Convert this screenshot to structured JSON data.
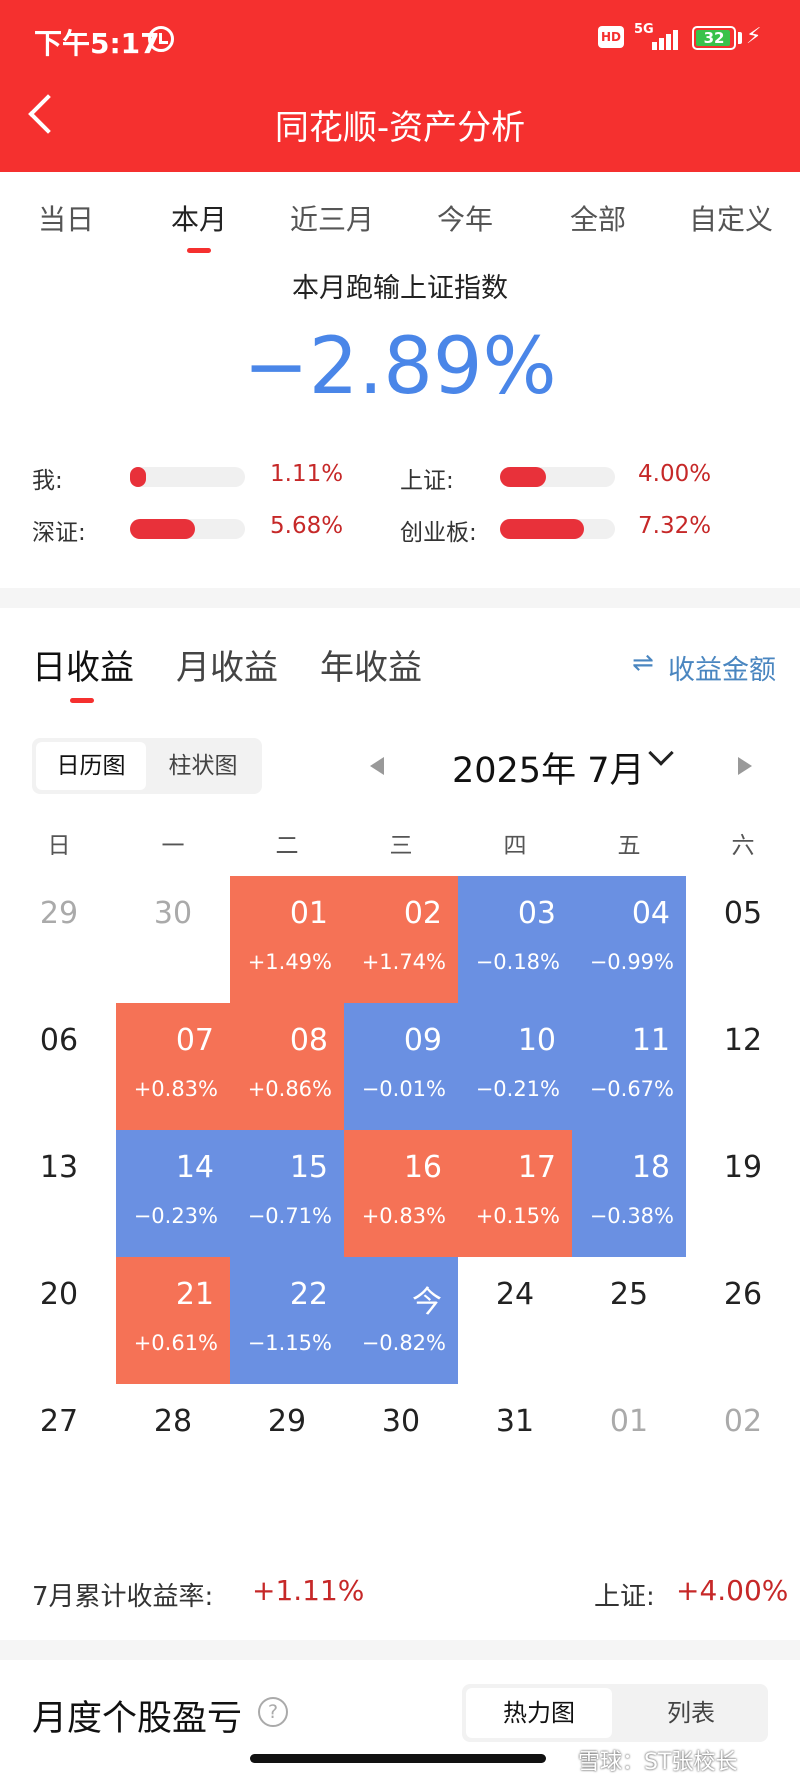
{
  "status_bar": {
    "time": "下午5:17",
    "hd": "HD",
    "network": "5G",
    "battery": "32"
  },
  "header": {
    "title": "同花顺-资产分析"
  },
  "range_tabs": [
    {
      "label": "当日",
      "active": false
    },
    {
      "label": "本月",
      "active": true
    },
    {
      "label": "近三月",
      "active": false
    },
    {
      "label": "今年",
      "active": false
    },
    {
      "label": "全部",
      "active": false
    },
    {
      "label": "自定义",
      "active": false
    }
  ],
  "summary": {
    "title": "本月跑输上证指数",
    "value": "−2.89%",
    "benchmarks": [
      {
        "label": "我:",
        "value": "1.11%",
        "fill": 0.1111
      },
      {
        "label": "上证:",
        "value": "4.00%",
        "fill": 0.4
      },
      {
        "label": "深证:",
        "value": "5.68%",
        "fill": 0.568
      },
      {
        "label": "创业板:",
        "value": "7.32%",
        "fill": 0.732
      }
    ]
  },
  "income_tabs": [
    {
      "label": "日收益",
      "active": true
    },
    {
      "label": "月收益",
      "active": false
    },
    {
      "label": "年收益",
      "active": false
    }
  ],
  "amount_toggle": "收益金额",
  "view_toggle": [
    {
      "label": "日历图",
      "active": true
    },
    {
      "label": "柱状图",
      "active": false
    }
  ],
  "month_label": "2025年 7月",
  "weekdays": [
    "日",
    "一",
    "二",
    "三",
    "四",
    "五",
    "六"
  ],
  "calendar": [
    [
      {
        "day": "29",
        "muted": true
      },
      {
        "day": "30",
        "muted": true
      },
      {
        "day": "01",
        "pct": "+1.49%",
        "state": "up"
      },
      {
        "day": "02",
        "pct": "+1.74%",
        "state": "up"
      },
      {
        "day": "03",
        "pct": "−0.18%",
        "state": "down"
      },
      {
        "day": "04",
        "pct": "−0.99%",
        "state": "down"
      },
      {
        "day": "05"
      }
    ],
    [
      {
        "day": "06"
      },
      {
        "day": "07",
        "pct": "+0.83%",
        "state": "up"
      },
      {
        "day": "08",
        "pct": "+0.86%",
        "state": "up"
      },
      {
        "day": "09",
        "pct": "−0.01%",
        "state": "down"
      },
      {
        "day": "10",
        "pct": "−0.21%",
        "state": "down"
      },
      {
        "day": "11",
        "pct": "−0.67%",
        "state": "down"
      },
      {
        "day": "12"
      }
    ],
    [
      {
        "day": "13"
      },
      {
        "day": "14",
        "pct": "−0.23%",
        "state": "down"
      },
      {
        "day": "15",
        "pct": "−0.71%",
        "state": "down"
      },
      {
        "day": "16",
        "pct": "+0.83%",
        "state": "up"
      },
      {
        "day": "17",
        "pct": "+0.15%",
        "state": "up"
      },
      {
        "day": "18",
        "pct": "−0.38%",
        "state": "down"
      },
      {
        "day": "19"
      }
    ],
    [
      {
        "day": "20"
      },
      {
        "day": "21",
        "pct": "+0.61%",
        "state": "up"
      },
      {
        "day": "22",
        "pct": "−1.15%",
        "state": "down"
      },
      {
        "day": "今",
        "pct": "−0.82%",
        "state": "down"
      },
      {
        "day": "24"
      },
      {
        "day": "25"
      },
      {
        "day": "26"
      }
    ],
    [
      {
        "day": "27"
      },
      {
        "day": "28"
      },
      {
        "day": "29"
      },
      {
        "day": "30"
      },
      {
        "day": "31"
      },
      {
        "day": "01",
        "muted": true
      },
      {
        "day": "02",
        "muted": true
      }
    ]
  ],
  "cumulative": {
    "label": "7月累计收益率:",
    "value": "+1.11%",
    "sh_label": "上证:",
    "sh_value": "+4.00%"
  },
  "stock_section": {
    "title": "月度个股盈亏",
    "help": "?",
    "modes": [
      {
        "label": "热力图",
        "active": true
      },
      {
        "label": "列表",
        "active": false
      }
    ]
  },
  "watermark": "雪球：ST张校长",
  "colors": {
    "brand_red": "#f5302f",
    "gain": "#f57256",
    "loss": "#6a90e2",
    "accent_blue": "#4a86e8"
  },
  "icons": [
    "alarm-icon",
    "signal-icon",
    "battery-icon",
    "charging-icon",
    "back-icon",
    "swap-icon",
    "prev-month-icon",
    "next-month-icon",
    "chevron-down-icon",
    "help-icon"
  ]
}
